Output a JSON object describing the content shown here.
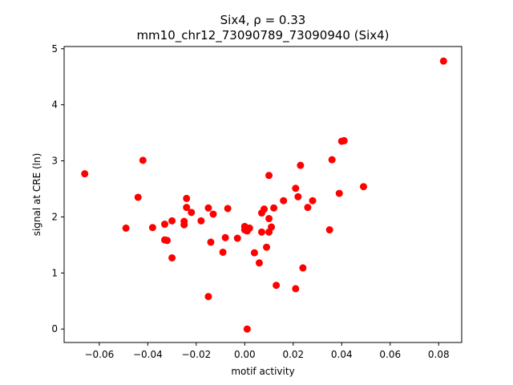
{
  "chart_data": {
    "type": "scatter",
    "title_line1": "Six4, ρ = 0.33",
    "title_line2": "mm10_chr12_73090789_73090940 (Six4)",
    "xlabel": "motif activity",
    "ylabel": "signal at CRE (ln)",
    "xlim": [
      -0.0745,
      0.0895
    ],
    "ylim": [
      -0.24,
      5.04
    ],
    "xticks": [
      -0.06,
      -0.04,
      -0.02,
      0.0,
      0.02,
      0.04,
      0.06,
      0.08
    ],
    "xtick_labels": [
      "−0.06",
      "−0.04",
      "−0.02",
      "0.00",
      "0.02",
      "0.04",
      "0.06",
      "0.08"
    ],
    "yticks": [
      0,
      1,
      2,
      3,
      4,
      5
    ],
    "ytick_labels": [
      "0",
      "1",
      "2",
      "3",
      "4",
      "5"
    ],
    "grid": false,
    "marker_color": "#ff0000",
    "points": [
      [
        -0.066,
        2.77
      ],
      [
        -0.049,
        1.8
      ],
      [
        -0.044,
        2.35
      ],
      [
        -0.042,
        3.01
      ],
      [
        -0.038,
        1.81
      ],
      [
        -0.033,
        1.87
      ],
      [
        -0.033,
        1.59
      ],
      [
        -0.032,
        1.58
      ],
      [
        -0.03,
        1.93
      ],
      [
        -0.03,
        1.27
      ],
      [
        -0.025,
        1.92
      ],
      [
        -0.025,
        1.86
      ],
      [
        -0.024,
        2.33
      ],
      [
        -0.024,
        2.17
      ],
      [
        -0.022,
        2.08
      ],
      [
        -0.018,
        1.93
      ],
      [
        -0.015,
        2.16
      ],
      [
        -0.015,
        0.58
      ],
      [
        -0.014,
        1.55
      ],
      [
        -0.013,
        2.05
      ],
      [
        -0.009,
        1.37
      ],
      [
        -0.008,
        1.63
      ],
      [
        -0.007,
        2.15
      ],
      [
        -0.003,
        1.62
      ],
      [
        0.0,
        1.77
      ],
      [
        0.0,
        1.83
      ],
      [
        0.001,
        1.75
      ],
      [
        0.001,
        0.0
      ],
      [
        0.002,
        1.8
      ],
      [
        0.004,
        1.36
      ],
      [
        0.006,
        1.18
      ],
      [
        0.007,
        2.07
      ],
      [
        0.007,
        1.73
      ],
      [
        0.008,
        2.14
      ],
      [
        0.009,
        1.46
      ],
      [
        0.01,
        2.74
      ],
      [
        0.01,
        1.97
      ],
      [
        0.01,
        1.73
      ],
      [
        0.011,
        1.82
      ],
      [
        0.012,
        2.16
      ],
      [
        0.013,
        0.78
      ],
      [
        0.016,
        2.29
      ],
      [
        0.021,
        2.51
      ],
      [
        0.021,
        0.72
      ],
      [
        0.022,
        2.36
      ],
      [
        0.023,
        2.92
      ],
      [
        0.024,
        1.09
      ],
      [
        0.026,
        2.17
      ],
      [
        0.028,
        2.29
      ],
      [
        0.035,
        1.77
      ],
      [
        0.036,
        3.02
      ],
      [
        0.039,
        2.42
      ],
      [
        0.04,
        3.35
      ],
      [
        0.041,
        3.36
      ],
      [
        0.049,
        2.54
      ],
      [
        0.082,
        4.78
      ]
    ]
  }
}
